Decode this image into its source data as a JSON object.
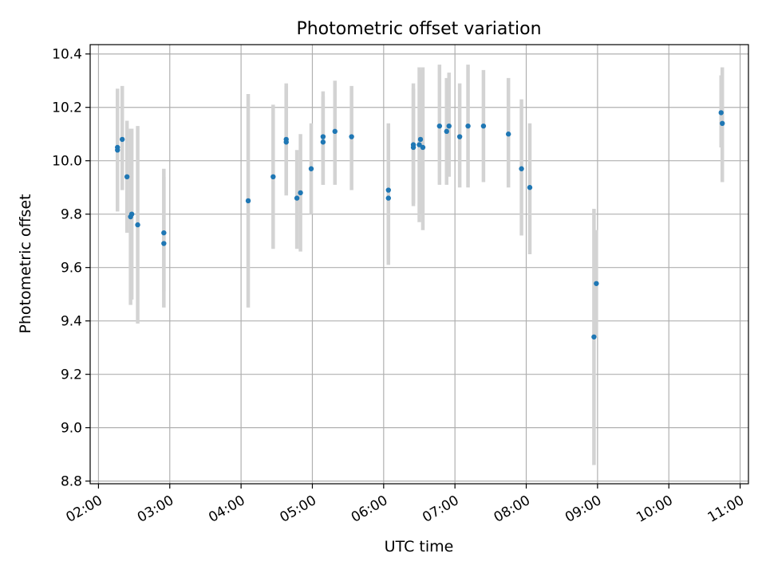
{
  "colors": {
    "point": "#1f77b4",
    "errorbar": "#d3d3d3",
    "grid": "#b0b0b0",
    "axis": "#000000"
  },
  "chart_data": {
    "type": "scatter",
    "title": "Photometric offset variation",
    "xlabel": "UTC time",
    "ylabel": "Photometric offset",
    "x_unit": "hours UTC",
    "xlim": [
      "01:53",
      "11:07"
    ],
    "ylim": [
      8.79,
      10.435
    ],
    "x_ticks": [
      "02:00",
      "03:00",
      "04:00",
      "05:00",
      "06:00",
      "07:00",
      "08:00",
      "09:00",
      "10:00",
      "11:00"
    ],
    "y_ticks": [
      "8.8",
      "9.0",
      "9.2",
      "9.4",
      "9.6",
      "9.8",
      "10.0",
      "10.2",
      "10.4"
    ],
    "grid": true,
    "series": [
      {
        "points": [
          {
            "x": "02:16",
            "y": 10.04,
            "lo": 9.81,
            "hi": 10.27
          },
          {
            "x": "02:16",
            "y": 10.05,
            "lo": 9.84,
            "hi": 10.26
          },
          {
            "x": "02:20",
            "y": 10.08,
            "lo": 9.89,
            "hi": 10.28
          },
          {
            "x": "02:24",
            "y": 9.94,
            "lo": 9.73,
            "hi": 10.15
          },
          {
            "x": "02:27",
            "y": 9.79,
            "lo": 9.46,
            "hi": 10.12
          },
          {
            "x": "02:28",
            "y": 9.8,
            "lo": 9.48,
            "hi": 10.12
          },
          {
            "x": "02:33",
            "y": 9.76,
            "lo": 9.39,
            "hi": 10.13
          },
          {
            "x": "02:55",
            "y": 9.73,
            "lo": 9.51,
            "hi": 9.94
          },
          {
            "x": "02:55",
            "y": 9.69,
            "lo": 9.45,
            "hi": 9.97
          },
          {
            "x": "04:06",
            "y": 9.85,
            "lo": 9.45,
            "hi": 10.25
          },
          {
            "x": "04:27",
            "y": 9.94,
            "lo": 9.67,
            "hi": 10.21
          },
          {
            "x": "04:38",
            "y": 10.07,
            "lo": 9.87,
            "hi": 10.28
          },
          {
            "x": "04:38",
            "y": 10.08,
            "lo": 9.88,
            "hi": 10.29
          },
          {
            "x": "04:47",
            "y": 9.86,
            "lo": 9.67,
            "hi": 10.04
          },
          {
            "x": "04:50",
            "y": 9.88,
            "lo": 9.66,
            "hi": 10.1
          },
          {
            "x": "04:59",
            "y": 9.97,
            "lo": 9.8,
            "hi": 10.14
          },
          {
            "x": "05:09",
            "y": 10.07,
            "lo": 9.91,
            "hi": 10.24
          },
          {
            "x": "05:09",
            "y": 10.09,
            "lo": 9.91,
            "hi": 10.26
          },
          {
            "x": "05:19",
            "y": 10.11,
            "lo": 9.91,
            "hi": 10.3
          },
          {
            "x": "05:33",
            "y": 10.09,
            "lo": 9.89,
            "hi": 10.28
          },
          {
            "x": "06:04",
            "y": 9.89,
            "lo": 9.63,
            "hi": 10.14
          },
          {
            "x": "06:04",
            "y": 9.86,
            "lo": 9.61,
            "hi": 10.11
          },
          {
            "x": "06:25",
            "y": 10.06,
            "lo": 9.83,
            "hi": 10.29
          },
          {
            "x": "06:25",
            "y": 10.05,
            "lo": 9.84,
            "hi": 10.27
          },
          {
            "x": "06:30",
            "y": 10.06,
            "lo": 9.77,
            "hi": 10.35
          },
          {
            "x": "06:31",
            "y": 10.08,
            "lo": 9.8,
            "hi": 10.34
          },
          {
            "x": "06:33",
            "y": 10.05,
            "lo": 9.74,
            "hi": 10.35
          },
          {
            "x": "06:47",
            "y": 10.13,
            "lo": 9.91,
            "hi": 10.36
          },
          {
            "x": "06:53",
            "y": 10.11,
            "lo": 9.91,
            "hi": 10.31
          },
          {
            "x": "06:55",
            "y": 10.13,
            "lo": 9.94,
            "hi": 10.33
          },
          {
            "x": "07:04",
            "y": 10.09,
            "lo": 9.9,
            "hi": 10.29
          },
          {
            "x": "07:11",
            "y": 10.13,
            "lo": 9.9,
            "hi": 10.36
          },
          {
            "x": "07:24",
            "y": 10.13,
            "lo": 9.92,
            "hi": 10.34
          },
          {
            "x": "07:45",
            "y": 10.1,
            "lo": 9.9,
            "hi": 10.31
          },
          {
            "x": "07:56",
            "y": 9.97,
            "lo": 9.72,
            "hi": 10.23
          },
          {
            "x": "08:03",
            "y": 9.9,
            "lo": 9.65,
            "hi": 10.14
          },
          {
            "x": "08:57",
            "y": 9.34,
            "lo": 8.86,
            "hi": 9.82
          },
          {
            "x": "08:59",
            "y": 9.54,
            "lo": 9.34,
            "hi": 9.74
          },
          {
            "x": "10:44",
            "y": 10.18,
            "lo": 10.05,
            "hi": 10.32
          },
          {
            "x": "10:45",
            "y": 10.14,
            "lo": 9.92,
            "hi": 10.35
          }
        ]
      }
    ]
  }
}
